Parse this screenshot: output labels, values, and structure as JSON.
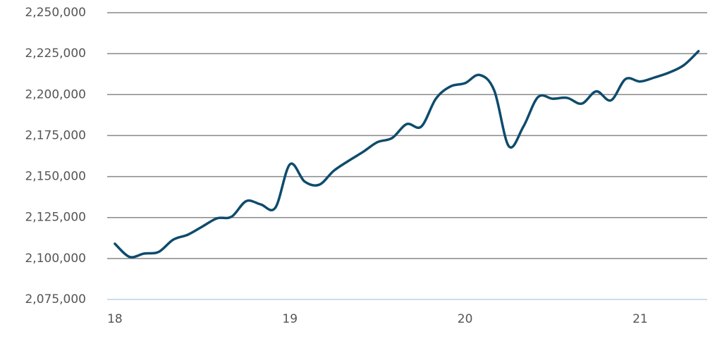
{
  "chart_data": {
    "type": "line",
    "x": [
      18,
      18.0833,
      18.1667,
      18.25,
      18.3333,
      18.4167,
      18.5,
      18.5833,
      18.6667,
      18.75,
      18.8333,
      18.9167,
      19,
      19.0833,
      19.1667,
      19.25,
      19.3333,
      19.4167,
      19.5,
      19.5833,
      19.6667,
      19.75,
      19.8333,
      19.9167,
      20,
      20.0833,
      20.1667,
      20.25,
      20.3333,
      20.4167,
      20.5,
      20.5833,
      20.6667,
      20.75,
      20.8333,
      20.9167,
      21,
      21.0833,
      21.1667,
      21.25,
      21.3333
    ],
    "series": [
      {
        "color": "#0e4b6c",
        "values": [
          2109000,
          2101000,
          2103000,
          2104000,
          2111500,
          2114500,
          2119500,
          2124500,
          2125500,
          2135000,
          2133000,
          2131000,
          2157500,
          2147000,
          2145000,
          2153500,
          2159500,
          2165000,
          2171000,
          2173500,
          2182000,
          2180500,
          2197500,
          2205000,
          2207000,
          2212000,
          2202500,
          2168500,
          2180500,
          2198500,
          2197500,
          2198000,
          2194500,
          2202000,
          2196500,
          2209500,
          2208000,
          2210500,
          2213500,
          2218000,
          2226500
        ]
      }
    ],
    "xlim": [
      17.956,
      21.383
    ],
    "xticks": [
      18,
      19,
      20,
      21
    ],
    "ylim": [
      2075000,
      2250000
    ],
    "yticks": [
      {
        "value": 2075000,
        "label": "2,075,000"
      },
      {
        "value": 2100000,
        "label": "2,100,000"
      },
      {
        "value": 2125000,
        "label": "2,125,000"
      },
      {
        "value": 2150000,
        "label": "2,150,000"
      },
      {
        "value": 2175000,
        "label": "2,175,000"
      },
      {
        "value": 2200000,
        "label": "2,200,000"
      },
      {
        "value": 2225000,
        "label": "2,225,000"
      },
      {
        "value": 2250000,
        "label": "2,250,000"
      }
    ],
    "grid": true
  }
}
